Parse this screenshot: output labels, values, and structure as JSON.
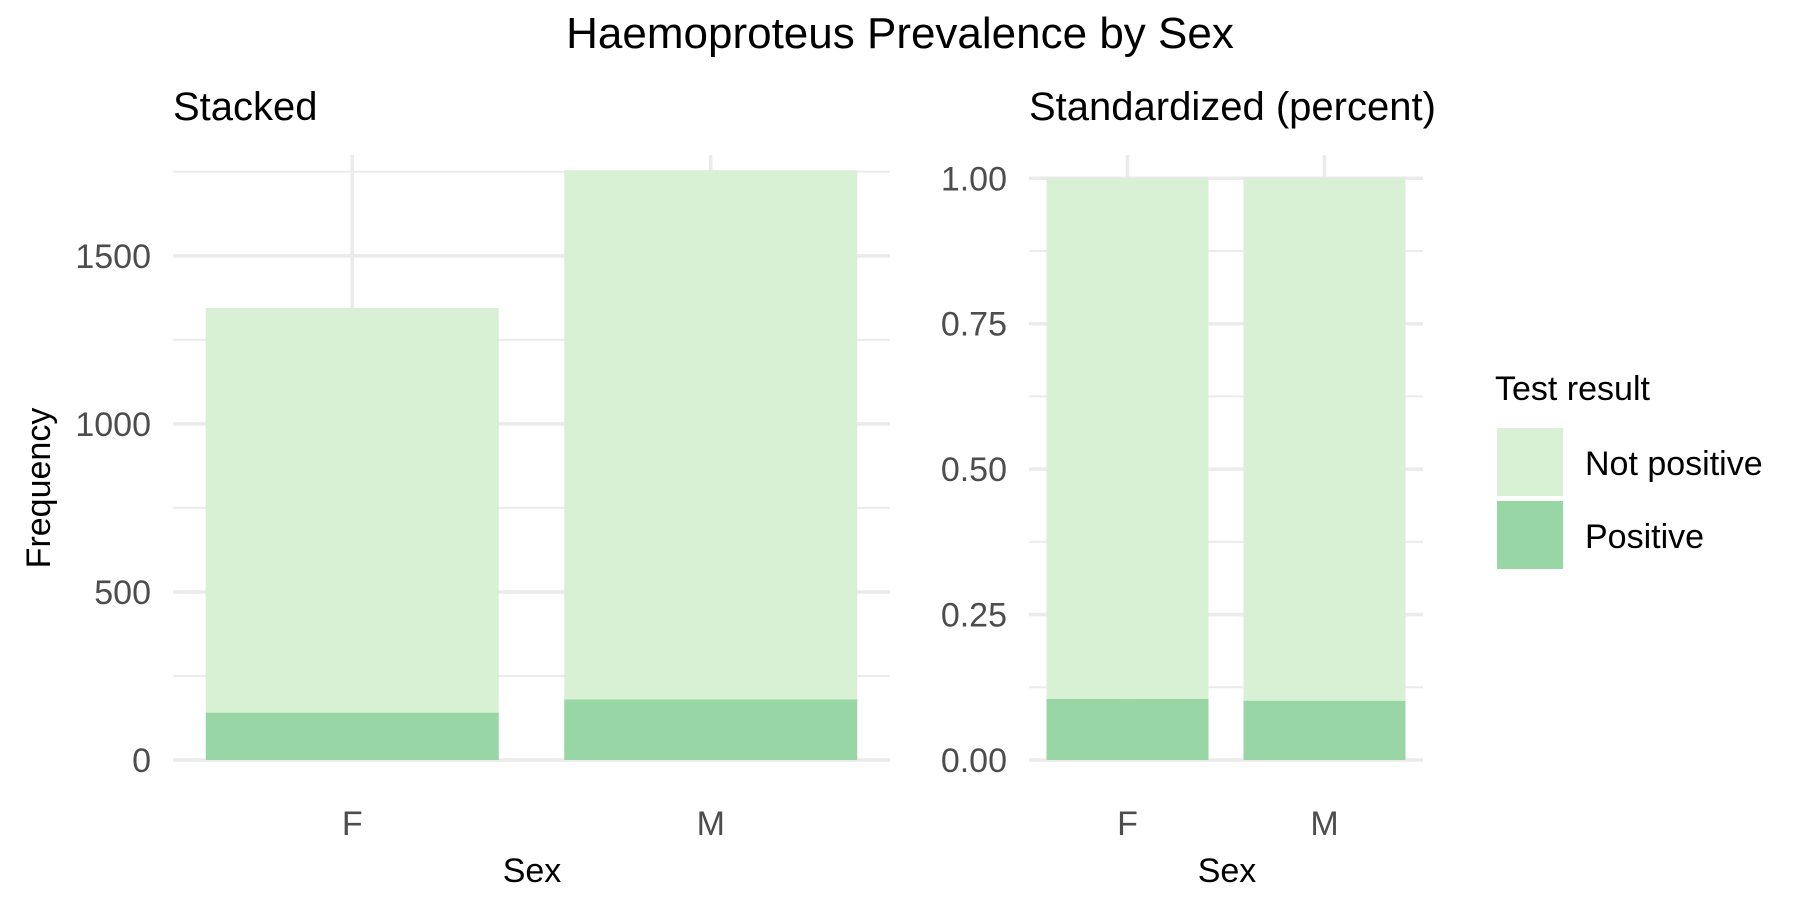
{
  "figure": {
    "title": "Haemoproteus Prevalence by Sex"
  },
  "legend": {
    "title": "Test result",
    "placement": "right",
    "items": [
      {
        "label": "Not positive",
        "color": "#d8f0d4"
      },
      {
        "label": "Positive",
        "color": "#99d6a6"
      }
    ]
  },
  "colors": {
    "grid": "#ebebeb",
    "tick_text": "#4d4d4d",
    "text": "#000000"
  },
  "chart_data": [
    {
      "type": "bar",
      "stacked": true,
      "title": "Stacked",
      "xlabel": "Sex",
      "ylabel": "Frequency",
      "categories": [
        "F",
        "M"
      ],
      "ylim": [
        0,
        1800
      ],
      "yticks": [
        0,
        500,
        1000,
        1500
      ],
      "grid": true,
      "series": [
        {
          "name": "Positive",
          "values": [
            141,
            180
          ]
        },
        {
          "name": "Not positive",
          "values": [
            1204,
            1575
          ]
        }
      ]
    },
    {
      "type": "bar",
      "stacked": true,
      "title": "Standardized (percent)",
      "xlabel": "Sex",
      "ylabel": "",
      "categories": [
        "F",
        "M"
      ],
      "ylim": [
        0,
        1.04
      ],
      "yticks": [
        0.0,
        0.25,
        0.5,
        0.75,
        1.0
      ],
      "ytick_labels": [
        "0.00",
        "0.25",
        "0.50",
        "0.75",
        "1.00"
      ],
      "grid": true,
      "series": [
        {
          "name": "Positive",
          "values": [
            0.105,
            0.102
          ]
        },
        {
          "name": "Not positive",
          "values": [
            0.895,
            0.898
          ]
        }
      ]
    }
  ]
}
